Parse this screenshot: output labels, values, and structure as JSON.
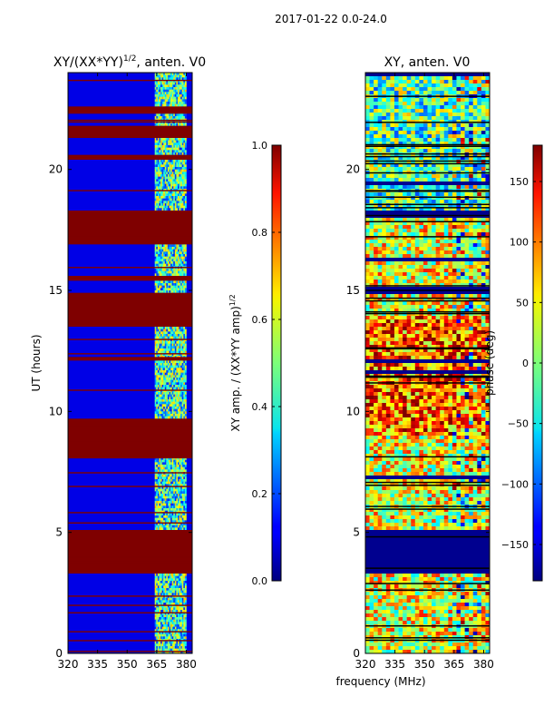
{
  "figure": {
    "suptitle": "2017-01-22 0.0-24.0",
    "xlabel": "frequency (MHz)"
  },
  "chart_data": [
    {
      "type": "heatmap",
      "title": "XY/(XX*YY)^{1/2}, anten. V0",
      "title_main": "XY/(XX*YY)",
      "title_sup": "1/2",
      "title_rest": ", anten. V0",
      "xlabel": "frequency (MHz)",
      "ylabel": "UT (hours)",
      "xlim": [
        320,
        383
      ],
      "ylim": [
        0,
        24
      ],
      "xticks": [
        320,
        335,
        350,
        365,
        380
      ],
      "yticks": [
        0,
        5,
        10,
        15,
        20
      ],
      "colorbar": {
        "label": "XY amp. / (XX*YY amp)^{1/2}",
        "label_main": "XY amp. / (XX*YY amp)",
        "label_sup": "1/2",
        "range": [
          0.0,
          1.0
        ],
        "ticks": [
          "0.0",
          "0.2",
          "0.4",
          "0.6",
          "0.8",
          "1.0"
        ],
        "tick_values": [
          0.0,
          0.2,
          0.4,
          0.6,
          0.8,
          1.0
        ],
        "colormap": "jet"
      },
      "saturated_time_ranges_hours": [
        [
          3.3,
          5.1
        ],
        [
          8.1,
          9.7
        ],
        [
          13.5,
          14.9
        ],
        [
          16.9,
          18.3
        ],
        [
          21.3,
          21.8
        ],
        [
          22.3,
          22.6
        ],
        [
          20.4,
          20.6
        ],
        [
          15.4,
          15.6
        ],
        [
          12.1,
          12.25
        ]
      ],
      "high_signal_band_mhz": [
        364,
        380
      ]
    },
    {
      "type": "heatmap",
      "title": "XY, anten. V0",
      "xlabel": "frequency (MHz)",
      "ylabel": "",
      "xlim": [
        320,
        383
      ],
      "ylim": [
        0,
        24
      ],
      "xticks": [
        320,
        335,
        350,
        365,
        380
      ],
      "yticks": [
        0,
        5,
        10,
        15,
        20
      ],
      "colorbar": {
        "label": "phase (deg)",
        "range": [
          -180,
          180
        ],
        "ticks": [
          "−150",
          "−100",
          "−50",
          "0",
          "50",
          "100",
          "150"
        ],
        "tick_values": [
          -150,
          -100,
          -50,
          0,
          50,
          100,
          150
        ],
        "colormap": "jet"
      },
      "flagged_time_ranges_hours": [
        [
          3.3,
          5.1
        ]
      ]
    }
  ]
}
